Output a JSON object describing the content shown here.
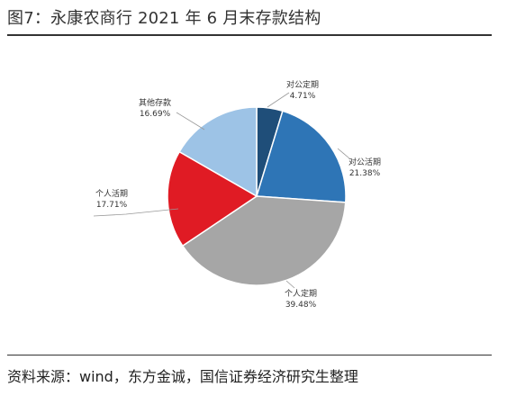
{
  "title": "图7：永康农商行 2021 年 6 月末存款结构",
  "source": "资料来源：wind，东方金诚，国信证券经济研究生整理",
  "chart_data": {
    "type": "pie",
    "title": "图7：永康农商行 2021 年 6 月末存款结构",
    "slices": [
      {
        "name": "对公定期",
        "value": 4.71,
        "label": "4.71%",
        "color": "#1f4e79"
      },
      {
        "name": "对公活期",
        "value": 21.38,
        "label": "21.38%",
        "color": "#2e75b6"
      },
      {
        "name": "个人定期",
        "value": 39.48,
        "label": "39.48%",
        "color": "#a6a6a6"
      },
      {
        "name": "个人活期",
        "value": 17.71,
        "label": "17.71%",
        "color": "#e01b24"
      },
      {
        "name": "其他存款",
        "value": 16.69,
        "label": "16.69%",
        "color": "#9dc3e6"
      }
    ],
    "start": "12 o'clock",
    "direction": "clockwise",
    "legend": "none"
  }
}
